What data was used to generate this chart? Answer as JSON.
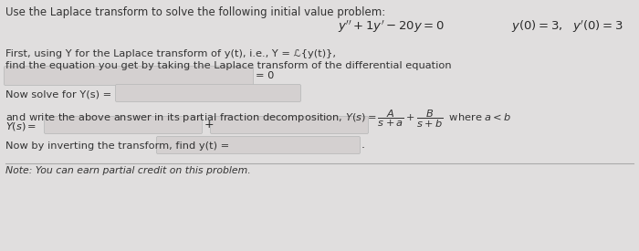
{
  "bg_color": "#e0dede",
  "content_bg": "#ececec",
  "title_text": "Use the Laplace transform to solve the following initial value problem:",
  "line1": "First, using Y for the Laplace transform of y(t), i.e., Y = ℒ{y(t)},",
  "line2": "find the equation you get by taking the Laplace transform of the differential equation",
  "equals_zero": "= 0",
  "solve_label": "Now solve for Y(s) =",
  "partial_line1": "and write the above answer in its partial fraction decomposition, Y(s) = ",
  "partial_line2": " where a < b",
  "Ys_label": "Y(s) =",
  "plus_sign": "+",
  "invert_label": "Now by inverting the transform, find y(t) =",
  "note_text": "Note: You can earn partial credit on this problem.",
  "input_box_color": "#d4d0d0",
  "input_box_edge": "#bbbbbb",
  "text_color": "#333333",
  "math_color": "#2a2a2a",
  "title_fontsize": 8.5,
  "body_fontsize": 8.2,
  "math_fontsize": 9.5,
  "note_fontsize": 7.8
}
